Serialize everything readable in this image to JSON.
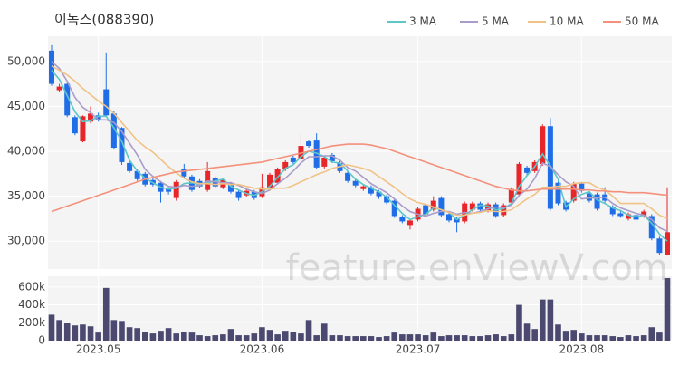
{
  "chart_data": {
    "type": "candlestick",
    "title": "이녹스(088390)",
    "watermark": "feature.enViewV.com",
    "categories": [
      null,
      null,
      null,
      null,
      null,
      null,
      "2023.05",
      null,
      null,
      null,
      null,
      null,
      null,
      null,
      null,
      null,
      null,
      null,
      null,
      null,
      null,
      null,
      null,
      null,
      null,
      null,
      null,
      "2023.06",
      null,
      null,
      null,
      null,
      null,
      null,
      null,
      null,
      null,
      null,
      null,
      null,
      null,
      null,
      null,
      null,
      null,
      null,
      null,
      "2023.07",
      null,
      null,
      null,
      null,
      null,
      null,
      null,
      null,
      null,
      null,
      null,
      null,
      null,
      null,
      null,
      null,
      null,
      null,
      null,
      null,
      "2023.08",
      null,
      null,
      null,
      null,
      null,
      null,
      null,
      null,
      null,
      null,
      null
    ],
    "ylim": [
      26900,
      52800
    ],
    "yticks": [
      {
        "value": 30000,
        "label": "30,000"
      },
      {
        "value": 35000,
        "label": "35,000"
      },
      {
        "value": 40000,
        "label": "40,000"
      },
      {
        "value": 45000,
        "label": "45,000"
      },
      {
        "value": 50000,
        "label": "50,000"
      }
    ],
    "grid": true,
    "up_color": "#e8262a",
    "down_color": "#1f6ee8",
    "ohlc": {
      "open": [
        51200,
        46800,
        47500,
        43800,
        41100,
        43300,
        44000,
        46900,
        44200,
        42600,
        38700,
        37800,
        37500,
        36800,
        36500,
        35800,
        34800,
        38000,
        37200,
        36700,
        35700,
        37000,
        36000,
        36400,
        35500,
        35100,
        35500,
        35000,
        35800,
        36500,
        38000,
        39300,
        39100,
        41100,
        41200,
        38300,
        39600,
        38700,
        37600,
        36700,
        35800,
        36000,
        35500,
        35000,
        34500,
        32700,
        31800,
        32400,
        34000,
        33500,
        34800,
        33000,
        32500,
        32200,
        33500,
        34200,
        33400,
        34100,
        32900,
        34300,
        35200,
        38200,
        37800,
        38600,
        42800,
        36500,
        34300,
        34500,
        36400,
        35300,
        35200,
        35200,
        33800,
        33100,
        32500,
        32900,
        32800,
        32800,
        30300,
        28500
      ],
      "high": [
        51800,
        47500,
        47600,
        44000,
        44000,
        45000,
        44300,
        51000,
        44500,
        42700,
        39000,
        38000,
        37700,
        37000,
        36700,
        36000,
        36800,
        38600,
        37400,
        36900,
        38800,
        37200,
        37000,
        36600,
        35700,
        35800,
        35700,
        37500,
        37600,
        38200,
        39000,
        39500,
        42000,
        41300,
        42000,
        39500,
        39800,
        38900,
        37800,
        36900,
        36300,
        36200,
        35700,
        35200,
        34700,
        32900,
        32500,
        33800,
        34200,
        35000,
        35000,
        33200,
        32700,
        34400,
        34400,
        34400,
        34300,
        34300,
        34200,
        36000,
        38800,
        38400,
        39000,
        43000,
        43700,
        36700,
        34500,
        36600,
        36600,
        35500,
        35400,
        36000,
        34000,
        33300,
        33200,
        33100,
        33500,
        33000,
        30500,
        36000
      ],
      "low": [
        47300,
        46600,
        43800,
        41800,
        41000,
        43100,
        43300,
        43800,
        40300,
        38500,
        37600,
        36700,
        36100,
        36100,
        34300,
        35200,
        34500,
        37000,
        35500,
        35900,
        35500,
        35900,
        35800,
        35300,
        34500,
        34900,
        34600,
        34800,
        35600,
        36300,
        37800,
        38600,
        38900,
        40400,
        38000,
        38100,
        38700,
        37600,
        36500,
        36000,
        35600,
        35100,
        34700,
        34100,
        32600,
        32000,
        31300,
        32200,
        32800,
        33300,
        32700,
        32100,
        31000,
        32000,
        33300,
        33300,
        33200,
        32600,
        32700,
        34100,
        35000,
        37400,
        37600,
        38400,
        33400,
        34000,
        33300,
        34300,
        35400,
        34300,
        33400,
        34300,
        32800,
        32600,
        32300,
        32200,
        32600,
        30100,
        28500,
        28400
      ],
      "close": [
        47500,
        47200,
        44000,
        42000,
        43900,
        44200,
        43500,
        44000,
        40400,
        38800,
        37800,
        36900,
        36300,
        36300,
        35500,
        35500,
        36600,
        37200,
        35700,
        36100,
        37800,
        36100,
        36800,
        35500,
        34800,
        35600,
        34800,
        36000,
        37400,
        38000,
        38800,
        38800,
        40600,
        40600,
        38200,
        39300,
        38900,
        37800,
        36700,
        36200,
        36100,
        35300,
        35000,
        34300,
        32800,
        32200,
        32300,
        33600,
        33000,
        34500,
        32900,
        32300,
        32100,
        34200,
        34200,
        33500,
        34100,
        32800,
        34000,
        35800,
        38600,
        37600,
        38800,
        42800,
        33600,
        34200,
        33500,
        36400,
        35600,
        34500,
        33600,
        34500,
        33000,
        32800,
        33000,
        32400,
        33300,
        30300,
        28700,
        31000
      ]
    },
    "series": [
      {
        "name": "3 MA",
        "color": "#5cc6c8",
        "values": [
          49000,
          48000,
          46200,
          44400,
          43300,
          43400,
          43900,
          43900,
          42600,
          41100,
          39000,
          37800,
          37000,
          36500,
          36000,
          35800,
          35900,
          36400,
          36500,
          36300,
          36500,
          36700,
          36900,
          36100,
          35700,
          35300,
          35100,
          35500,
          36100,
          37100,
          38100,
          38500,
          39400,
          40000,
          39800,
          39400,
          38800,
          38700,
          37800,
          36900,
          36300,
          35900,
          35500,
          34900,
          34000,
          33100,
          32400,
          32700,
          33000,
          33700,
          33500,
          33200,
          32400,
          32900,
          33500,
          34000,
          33900,
          33500,
          33600,
          34200,
          36100,
          37300,
          38300,
          39700,
          38400,
          36900,
          33800,
          34700,
          35200,
          35500,
          34600,
          34200,
          33700,
          33400,
          32900,
          32700,
          32900,
          32000,
          30800,
          30000
        ]
      },
      {
        "name": "5 MA",
        "color": "#a99cc9",
        "values": [
          50000,
          49200,
          47800,
          46000,
          44900,
          44300,
          43500,
          43500,
          43200,
          42200,
          40900,
          39600,
          38000,
          37200,
          36600,
          36100,
          36000,
          36200,
          36100,
          36200,
          36700,
          36600,
          36500,
          36500,
          36200,
          35800,
          35500,
          35300,
          35700,
          36400,
          37000,
          37800,
          38700,
          39400,
          39400,
          39500,
          39500,
          39000,
          38200,
          37800,
          37100,
          36400,
          35900,
          35400,
          34700,
          33900,
          33300,
          33000,
          32800,
          33100,
          33300,
          33300,
          33000,
          33200,
          33100,
          33300,
          33600,
          33800,
          33700,
          34000,
          35100,
          35800,
          37000,
          38700,
          38300,
          37400,
          36600,
          36100,
          34700,
          34800,
          34800,
          34900,
          34200,
          33700,
          33400,
          33100,
          32900,
          32400,
          31500,
          31100
        ]
      },
      {
        "name": "10 MA",
        "color": "#f1c285",
        "values": [
          49500,
          49000,
          48500,
          47800,
          47000,
          46300,
          45600,
          45000,
          44200,
          43200,
          42200,
          41200,
          40500,
          39900,
          39100,
          38300,
          37600,
          37000,
          36600,
          36400,
          36400,
          36300,
          36400,
          36300,
          36300,
          36100,
          35900,
          35800,
          35800,
          35900,
          35900,
          36200,
          36600,
          37000,
          37400,
          37700,
          38100,
          38300,
          38500,
          38300,
          38100,
          37800,
          37200,
          36600,
          36000,
          35300,
          34700,
          34300,
          34100,
          33800,
          33500,
          33200,
          32900,
          32900,
          33100,
          33200,
          33400,
          33300,
          33300,
          33500,
          34100,
          34700,
          35200,
          36000,
          36000,
          36100,
          36100,
          36400,
          36500,
          36500,
          36000,
          35700,
          35000,
          34200,
          34200,
          34200,
          34200,
          33600,
          32900,
          32500
        ]
      },
      {
        "name": "50 MA",
        "color": "#f4917b",
        "values": [
          33300,
          33600,
          33900,
          34200,
          34500,
          34800,
          35100,
          35400,
          35700,
          36000,
          36300,
          36600,
          36900,
          37100,
          37300,
          37500,
          37700,
          37800,
          37900,
          38000,
          38100,
          38200,
          38300,
          38400,
          38500,
          38600,
          38700,
          38800,
          39000,
          39200,
          39400,
          39600,
          39800,
          40000,
          40200,
          40400,
          40600,
          40700,
          40800,
          40800,
          40800,
          40700,
          40500,
          40300,
          40000,
          39700,
          39400,
          39100,
          38800,
          38500,
          38200,
          37900,
          37600,
          37300,
          37000,
          36700,
          36400,
          36100,
          35900,
          35700,
          35600,
          35600,
          35700,
          35800,
          35800,
          35800,
          35800,
          35800,
          35700,
          35700,
          35600,
          35600,
          35500,
          35500,
          35400,
          35400,
          35400,
          35300,
          35200,
          35100
        ]
      }
    ],
    "volume": {
      "color": "#4b4970",
      "ylim": [
        0,
        720000
      ],
      "yticks": [
        0,
        {
          "value": 200000,
          "label": "200k"
        },
        {
          "value": 400000,
          "label": "400k"
        },
        {
          "value": 600000,
          "label": "600k"
        }
      ],
      "values": [
        290000,
        230000,
        200000,
        170000,
        180000,
        160000,
        90000,
        590000,
        230000,
        220000,
        150000,
        140000,
        100000,
        80000,
        110000,
        140000,
        80000,
        100000,
        90000,
        60000,
        50000,
        60000,
        70000,
        130000,
        60000,
        60000,
        80000,
        150000,
        120000,
        70000,
        110000,
        100000,
        80000,
        230000,
        60000,
        190000,
        60000,
        60000,
        50000,
        50000,
        50000,
        50000,
        40000,
        50000,
        90000,
        70000,
        70000,
        70000,
        60000,
        90000,
        50000,
        60000,
        60000,
        60000,
        50000,
        50000,
        60000,
        70000,
        50000,
        70000,
        400000,
        190000,
        130000,
        460000,
        460000,
        180000,
        110000,
        120000,
        80000,
        60000,
        60000,
        60000,
        50000,
        40000,
        60000,
        50000,
        60000,
        150000,
        90000,
        700000
      ]
    }
  }
}
